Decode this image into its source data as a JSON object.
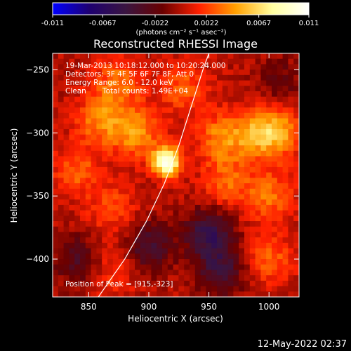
{
  "colorbar": {
    "ticks": [
      "-0.011",
      "-0.0067",
      "-0.0022",
      "0.0022",
      "0.0067",
      "0.011"
    ],
    "tick_values": [
      -0.011,
      -0.0067,
      -0.0022,
      0.0022,
      0.0067,
      0.011
    ],
    "range": [
      -0.011,
      0.011
    ],
    "unit_label": "(photons cm⁻² s⁻¹ asec⁻²)",
    "colors": [
      "#0000ff",
      "#1e0070",
      "#3a1540",
      "#6a0000",
      "#ff2000",
      "#ffa000",
      "#ffffa0",
      "#ffffff"
    ]
  },
  "footer": {
    "timestamp": "12-May-2022 02:37"
  },
  "chart_data": {
    "type": "heatmap",
    "title": "Reconstructed RHESSI Image",
    "xlabel": "Heliocentric X (arcsec)",
    "ylabel": "Heliocentric Y (arcsec)",
    "xlim": [
      820,
      1025
    ],
    "ylim": [
      -430,
      -237
    ],
    "x_ticks": [
      850,
      900,
      950,
      1000
    ],
    "y_ticks": [
      -250,
      -300,
      -350,
      -400
    ],
    "x_tick_labels": [
      "850",
      "900",
      "950",
      "1000"
    ],
    "y_tick_labels": [
      "−250",
      "−300",
      "−350",
      "−400"
    ],
    "grid": false,
    "annotations": {
      "time_range": "19-Mar-2013 10:18:12.000 to 10:20:24.000",
      "detectors": "Detectors: 3F 4F 5F 6F 7F 8F, Att 0",
      "energy": "Energy Range: 6.0 - 12.0 keV",
      "method": "Clean",
      "total_counts": "Total counts: 1.49E+04",
      "peak": "Position of Peak = [915,-323]"
    },
    "peak_position": [
      915,
      -323
    ],
    "peak_value": 0.011,
    "limb_curve": [
      [
        858,
        -430
      ],
      [
        880,
        -400
      ],
      [
        898,
        -370
      ],
      [
        913,
        -340
      ],
      [
        925,
        -310
      ],
      [
        935,
        -280
      ],
      [
        945,
        -250
      ],
      [
        950,
        -237
      ]
    ],
    "emission_features": [
      {
        "x": 915,
        "y": -323,
        "value": 0.011
      },
      {
        "x": 860,
        "y": -290,
        "value": 0.004
      },
      {
        "x": 890,
        "y": -300,
        "value": 0.0045
      },
      {
        "x": 960,
        "y": -305,
        "value": 0.004
      },
      {
        "x": 990,
        "y": -300,
        "value": 0.0045
      },
      {
        "x": 1010,
        "y": -300,
        "value": 0.004
      },
      {
        "x": 875,
        "y": -260,
        "value": 0.0035
      },
      {
        "x": 930,
        "y": -265,
        "value": 0.003
      },
      {
        "x": 840,
        "y": -330,
        "value": 0.003
      },
      {
        "x": 965,
        "y": -340,
        "value": 0.003
      },
      {
        "x": 1000,
        "y": -350,
        "value": 0.0035
      },
      {
        "x": 870,
        "y": -360,
        "value": 0.0025
      },
      {
        "x": 1000,
        "y": -400,
        "value": 0.003
      },
      {
        "x": 870,
        "y": -410,
        "value": 0.002
      },
      {
        "x": 900,
        "y": -390,
        "value": -0.004
      },
      {
        "x": 950,
        "y": -380,
        "value": -0.005
      },
      {
        "x": 840,
        "y": -400,
        "value": -0.003
      },
      {
        "x": 1010,
        "y": -260,
        "value": -0.002
      },
      {
        "x": 960,
        "y": -410,
        "value": -0.004
      }
    ]
  }
}
